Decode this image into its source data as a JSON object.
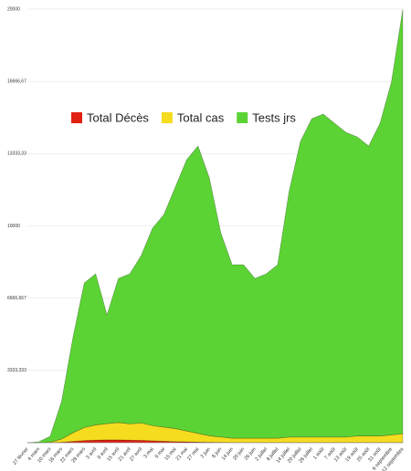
{
  "chart_data": {
    "type": "stacked-area",
    "categories": [
      "27 février",
      "4 mars",
      "10 mars",
      "16 mars",
      "22 mars",
      "28 mars",
      "3 avril",
      "9 avril",
      "15 avril",
      "21 avril",
      "27 avril",
      "3 mai",
      "9 mai",
      "15 mai",
      "21 mai",
      "27 mai",
      "2 juin",
      "8 juin",
      "14 juin",
      "20 juin",
      "26 juin",
      "2 juillet",
      "8 juillet",
      "14 juillet",
      "20 juillet",
      "26 juillet",
      "1 août",
      "7 août",
      "13 août",
      "19 août",
      "25 août",
      "31 août",
      "6 septembre",
      "12 septembre"
    ],
    "series": [
      {
        "name": "Total Décès",
        "color": "#e02010",
        "values": [
          0,
          0,
          5,
          20,
          60,
          100,
          120,
          130,
          130,
          120,
          110,
          90,
          70,
          50,
          40,
          30,
          20,
          15,
          10,
          10,
          10,
          10,
          10,
          10,
          10,
          10,
          10,
          10,
          10,
          10,
          10,
          10,
          10,
          10
        ]
      },
      {
        "name": "Total cas",
        "color": "#f5dc1e",
        "values": [
          0,
          0,
          20,
          150,
          400,
          600,
          700,
          750,
          800,
          750,
          800,
          700,
          650,
          600,
          500,
          400,
          300,
          250,
          200,
          200,
          200,
          200,
          200,
          250,
          250,
          250,
          250,
          250,
          250,
          300,
          300,
          300,
          350,
          400
        ]
      },
      {
        "name": "Tests jrs",
        "color": "#5cd334",
        "values": [
          0,
          42,
          270,
          1725,
          4382,
          6668,
          6969,
          5015,
          6649,
          6919,
          7722,
          9105,
          9806,
          11139,
          12513,
          13254,
          11891,
          9419,
          8001,
          8001,
          7369,
          7579,
          8001,
          11319,
          13635,
          14687,
          14898,
          14477,
          14056,
          13795,
          13374,
          14427,
          16272,
          19590
        ]
      }
    ],
    "ylim": [
      0,
      20000
    ],
    "yticks": [
      {
        "value": 3333.333,
        "label": "3333,333"
      },
      {
        "value": 6666.667,
        "label": "6666,667"
      },
      10000,
      {
        "value": 13333.33,
        "label": "13333,33"
      },
      {
        "value": 16666.67,
        "label": "16666,67"
      },
      20000
    ],
    "grid": true,
    "legend": "top"
  }
}
